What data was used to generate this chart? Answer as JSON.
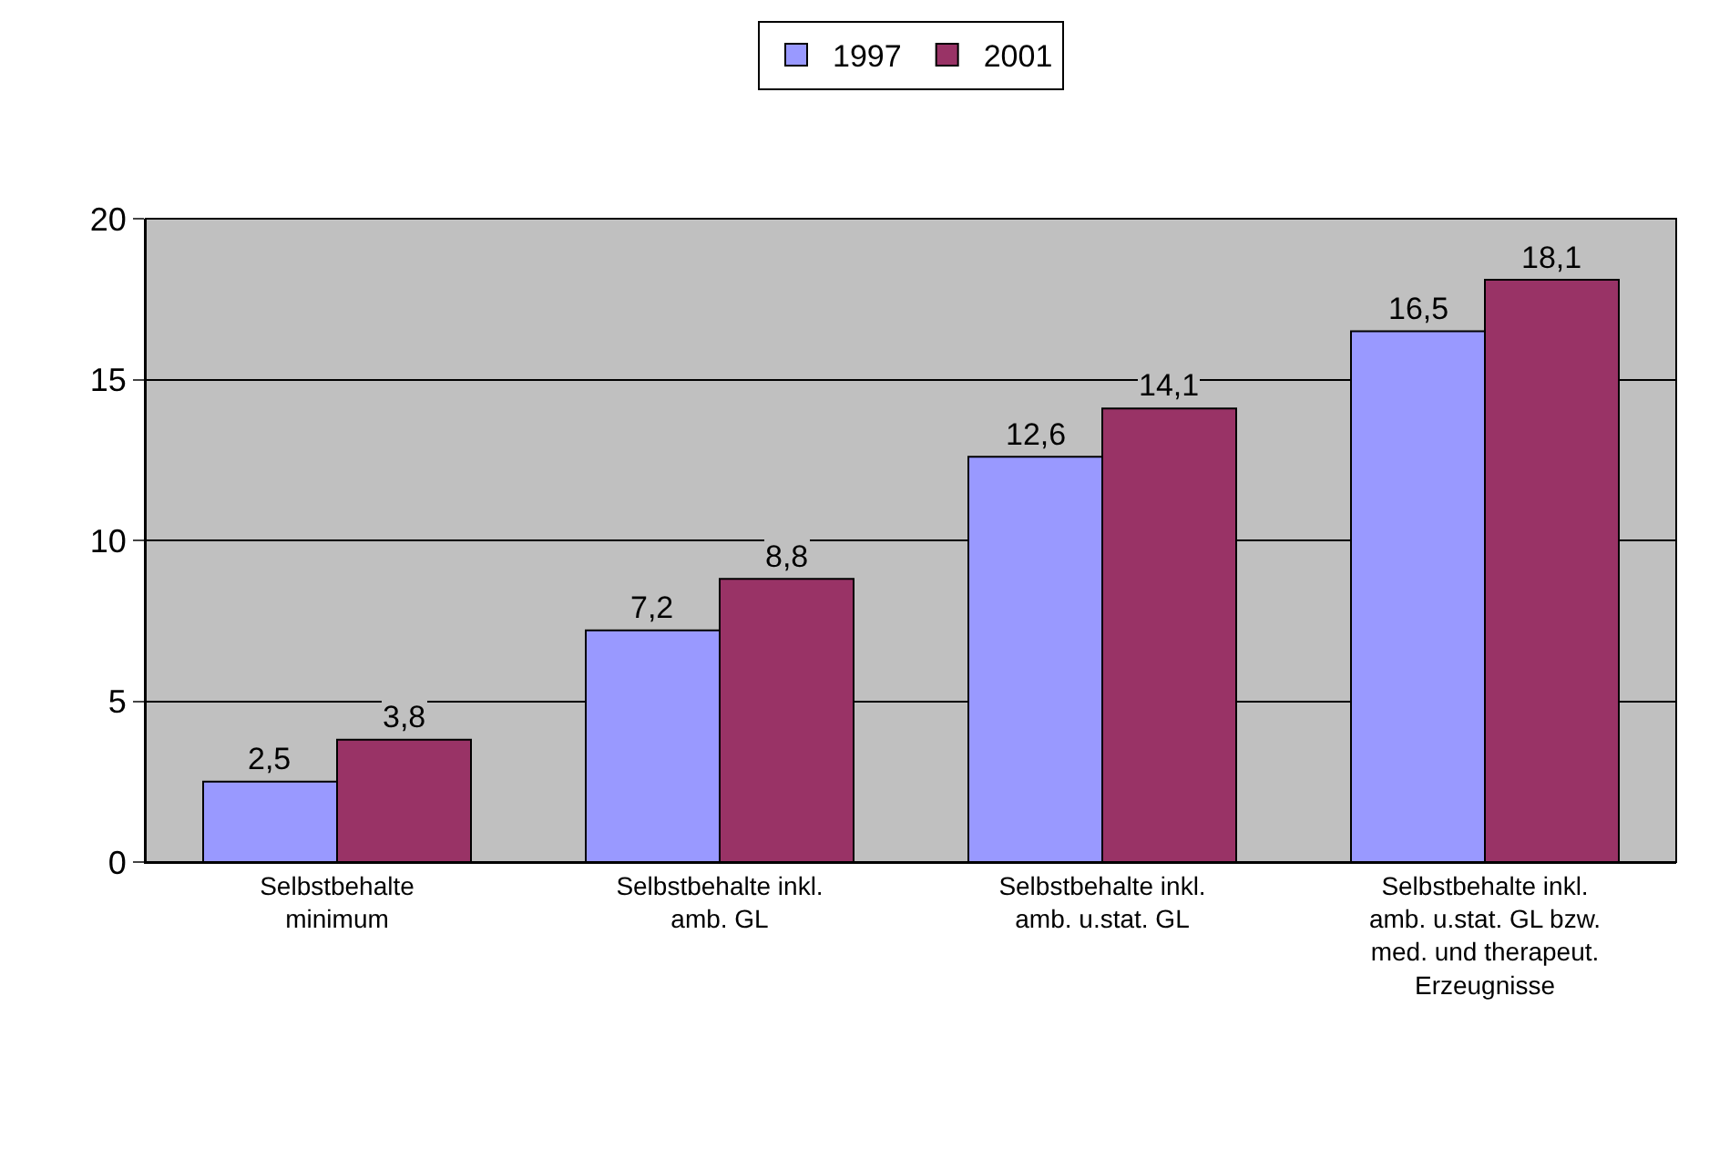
{
  "chart_data": {
    "type": "bar",
    "categories": [
      "Selbstbehalte minimum",
      "Selbstbehalte inkl. amb. GL",
      "Selbstbehalte inkl. amb. u.stat. GL",
      "Selbstbehalte inkl. amb. u.stat. GL bzw. med. und therapeut. Erzeugnisse"
    ],
    "series": [
      {
        "name": "1997",
        "color": "#9999ff",
        "values": [
          2.5,
          7.2,
          12.6,
          16.5
        ],
        "value_labels": [
          "2,5",
          "7,2",
          "12,6",
          "16,5"
        ]
      },
      {
        "name": "2001",
        "color": "#993366",
        "values": [
          3.8,
          8.8,
          14.1,
          18.1
        ],
        "value_labels": [
          "3,8",
          "8,8",
          "14,1",
          "18,1"
        ]
      }
    ],
    "ylim": [
      0,
      20
    ],
    "yticks": [
      0,
      5,
      10,
      15,
      20
    ],
    "grid": "y",
    "legend": "top"
  }
}
